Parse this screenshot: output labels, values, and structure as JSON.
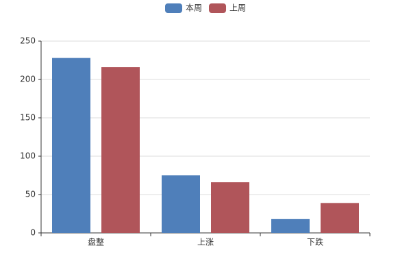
{
  "chart_data": {
    "type": "bar",
    "categories": [
      "盘整",
      "上涨",
      "下跌"
    ],
    "series": [
      {
        "name": "本周",
        "color": "#4f7fba",
        "values": [
          228,
          75,
          18
        ]
      },
      {
        "name": "上周",
        "color": "#b0555a",
        "values": [
          216,
          66,
          39
        ]
      }
    ],
    "ylim": [
      0,
      250
    ],
    "yticks": [
      0,
      50,
      100,
      150,
      200,
      250
    ],
    "grid": true,
    "legend": "top"
  }
}
